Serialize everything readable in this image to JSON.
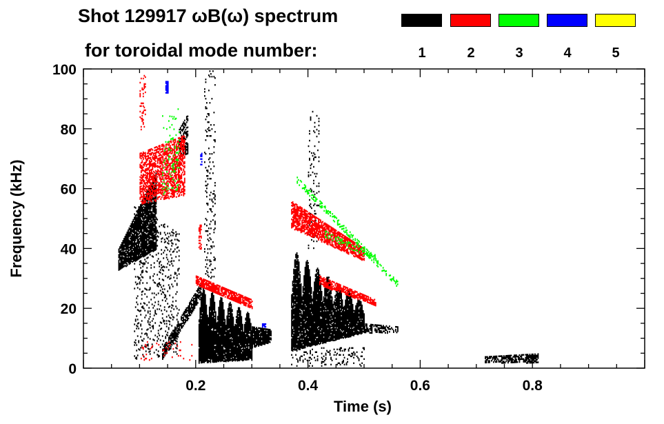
{
  "chart_data": {
    "type": "heatmap",
    "title": "Shot 129917 ωB(ω) spectrum",
    "legend_title": "for toroidal mode number:",
    "legend_placement": "top-right",
    "legend": [
      {
        "label": "1",
        "color": "#000000"
      },
      {
        "label": "2",
        "color": "#ff0000"
      },
      {
        "label": "3",
        "color": "#00ff00"
      },
      {
        "label": "4",
        "color": "#0000ff"
      },
      {
        "label": "5",
        "color": "#ffff00"
      }
    ],
    "xlabel": "Time (s)",
    "ylabel": "Frequency (kHz)",
    "xlim": [
      0,
      1.0
    ],
    "ylim": [
      0,
      100
    ],
    "xticks": [
      0.2,
      0.4,
      0.6,
      0.8
    ],
    "xtick_labels": [
      "0.2",
      "0.4",
      "0.6",
      "0.8"
    ],
    "yticks": [
      0,
      20,
      40,
      60,
      80,
      100
    ],
    "ytick_labels": [
      "0",
      "20",
      "40",
      "60",
      "80",
      "100"
    ],
    "features": [
      {
        "mode": 1,
        "t": [
          0.062,
          0.13
        ],
        "lo": [
          33,
          40
        ],
        "hi": [
          40,
          66
        ],
        "density": 0.85
      },
      {
        "mode": 1,
        "t": [
          0.09,
          0.17
        ],
        "lo": [
          3,
          5
        ],
        "hi": [
          55,
          45
        ],
        "density": 0.12
      },
      {
        "mode": 1,
        "t": [
          0.17,
          0.185
        ],
        "lo": [
          70,
          72
        ],
        "hi": [
          80,
          85
        ],
        "density": 0.5
      },
      {
        "mode": 1,
        "t": [
          0.14,
          0.21
        ],
        "lo": [
          3,
          24
        ],
        "hi": [
          7,
          29
        ],
        "density": 0.75
      },
      {
        "mode": 1,
        "t": [
          0.205,
          0.3
        ],
        "lo": [
          2,
          3
        ],
        "hi": [
          28,
          18
        ],
        "density": 0.95,
        "lobes": 6
      },
      {
        "mode": 1,
        "t": [
          0.3,
          0.335
        ],
        "lo": [
          7,
          9
        ],
        "hi": [
          14,
          13
        ],
        "density": 0.9
      },
      {
        "mode": 1,
        "t": [
          0.215,
          0.235
        ],
        "lo": [
          30,
          30
        ],
        "hi": [
          100,
          100
        ],
        "density": 0.1
      },
      {
        "mode": 1,
        "t": [
          0.37,
          0.5
        ],
        "lo": [
          6,
          12
        ],
        "hi": [
          40,
          22
        ],
        "density": 0.92,
        "lobes": 7
      },
      {
        "mode": 1,
        "t": [
          0.4,
          0.42
        ],
        "lo": [
          40,
          40
        ],
        "hi": [
          86,
          86
        ],
        "density": 0.08
      },
      {
        "mode": 1,
        "t": [
          0.5,
          0.56
        ],
        "lo": [
          12,
          12
        ],
        "hi": [
          15,
          14
        ],
        "density": 0.5
      },
      {
        "mode": 1,
        "t": [
          0.37,
          0.5
        ],
        "lo": [
          1,
          1
        ],
        "hi": [
          7,
          7
        ],
        "density": 0.15
      },
      {
        "mode": 1,
        "t": [
          0.715,
          0.81
        ],
        "lo": [
          2,
          2
        ],
        "hi": [
          4,
          5
        ],
        "density": 0.7
      },
      {
        "mode": 2,
        "t": [
          0.1,
          0.18
        ],
        "lo": [
          55,
          58
        ],
        "hi": [
          72,
          78
        ],
        "density": 0.55
      },
      {
        "mode": 2,
        "t": [
          0.1,
          0.11
        ],
        "lo": [
          80,
          80
        ],
        "hi": [
          98,
          98
        ],
        "density": 0.2
      },
      {
        "mode": 2,
        "t": [
          0.2,
          0.3
        ],
        "lo": [
          28,
          20
        ],
        "hi": [
          31,
          23
        ],
        "density": 0.8
      },
      {
        "mode": 2,
        "t": [
          0.205,
          0.21
        ],
        "lo": [
          40,
          40
        ],
        "hi": [
          48,
          48
        ],
        "density": 0.6
      },
      {
        "mode": 2,
        "t": [
          0.37,
          0.5
        ],
        "lo": [
          47,
          36
        ],
        "hi": [
          56,
          40
        ],
        "density": 0.75
      },
      {
        "mode": 2,
        "t": [
          0.42,
          0.52
        ],
        "lo": [
          28,
          21
        ],
        "hi": [
          31,
          23
        ],
        "density": 0.75
      },
      {
        "mode": 2,
        "t": [
          0.1,
          0.2
        ],
        "lo": [
          3,
          3
        ],
        "hi": [
          9,
          9
        ],
        "density": 0.05
      },
      {
        "mode": 3,
        "t": [
          0.38,
          0.56
        ],
        "lo": [
          62,
          27
        ],
        "hi": [
          64,
          29
        ],
        "density": 0.35
      },
      {
        "mode": 3,
        "t": [
          0.43,
          0.52
        ],
        "lo": [
          44,
          36
        ],
        "hi": [
          46,
          38
        ],
        "density": 0.3
      },
      {
        "mode": 3,
        "t": [
          0.14,
          0.17
        ],
        "lo": [
          58,
          60
        ],
        "hi": [
          85,
          88
        ],
        "density": 0.08
      },
      {
        "mode": 4,
        "t": [
          0.146,
          0.15
        ],
        "lo": [
          92,
          92
        ],
        "hi": [
          96,
          96
        ],
        "density": 0.9
      },
      {
        "mode": 4,
        "t": [
          0.318,
          0.325
        ],
        "lo": [
          14,
          14
        ],
        "hi": [
          15,
          15
        ],
        "density": 0.9
      },
      {
        "mode": 4,
        "t": [
          0.208,
          0.21
        ],
        "lo": [
          68,
          68
        ],
        "hi": [
          72,
          72
        ],
        "density": 0.5
      }
    ]
  }
}
